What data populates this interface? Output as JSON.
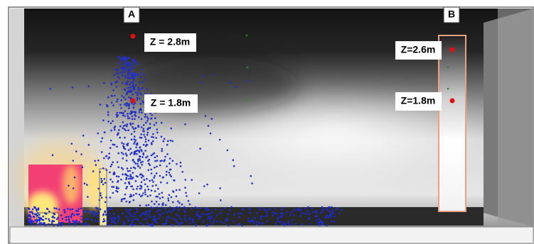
{
  "probes": [
    {
      "name": "A",
      "heights": [
        "Z = 2.8m",
        "Z = 1.8m"
      ]
    },
    {
      "name": "B",
      "heights": [
        "Z=2.6m",
        "Z=1.8m"
      ]
    }
  ]
}
